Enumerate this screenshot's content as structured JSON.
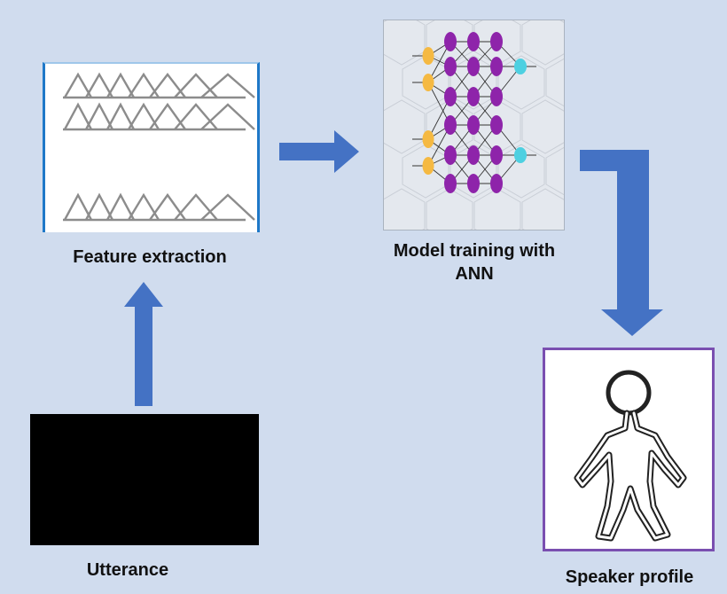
{
  "stages": {
    "feature_extraction": {
      "label": "Feature extraction"
    },
    "model_training": {
      "label_line1": "Model training with",
      "label_line2": "ANN"
    },
    "utterance": {
      "label": "Utterance"
    },
    "speaker_profile": {
      "label": "Speaker profile"
    }
  },
  "colors": {
    "background": "#d0dcee",
    "arrow": "#4472c4",
    "filterbank": "#8c8c8c",
    "neuron_input": "#f5b942",
    "neuron_hidden": "#8e24aa",
    "neuron_output": "#4dd0e1",
    "speaker_border": "#7a4fb0"
  },
  "icons": {
    "feature_extraction": "triangular-filterbank-icon",
    "model_training": "neural-network-icon",
    "utterance": "audio-waveform-icon",
    "speaker_profile": "person-outline-icon"
  }
}
